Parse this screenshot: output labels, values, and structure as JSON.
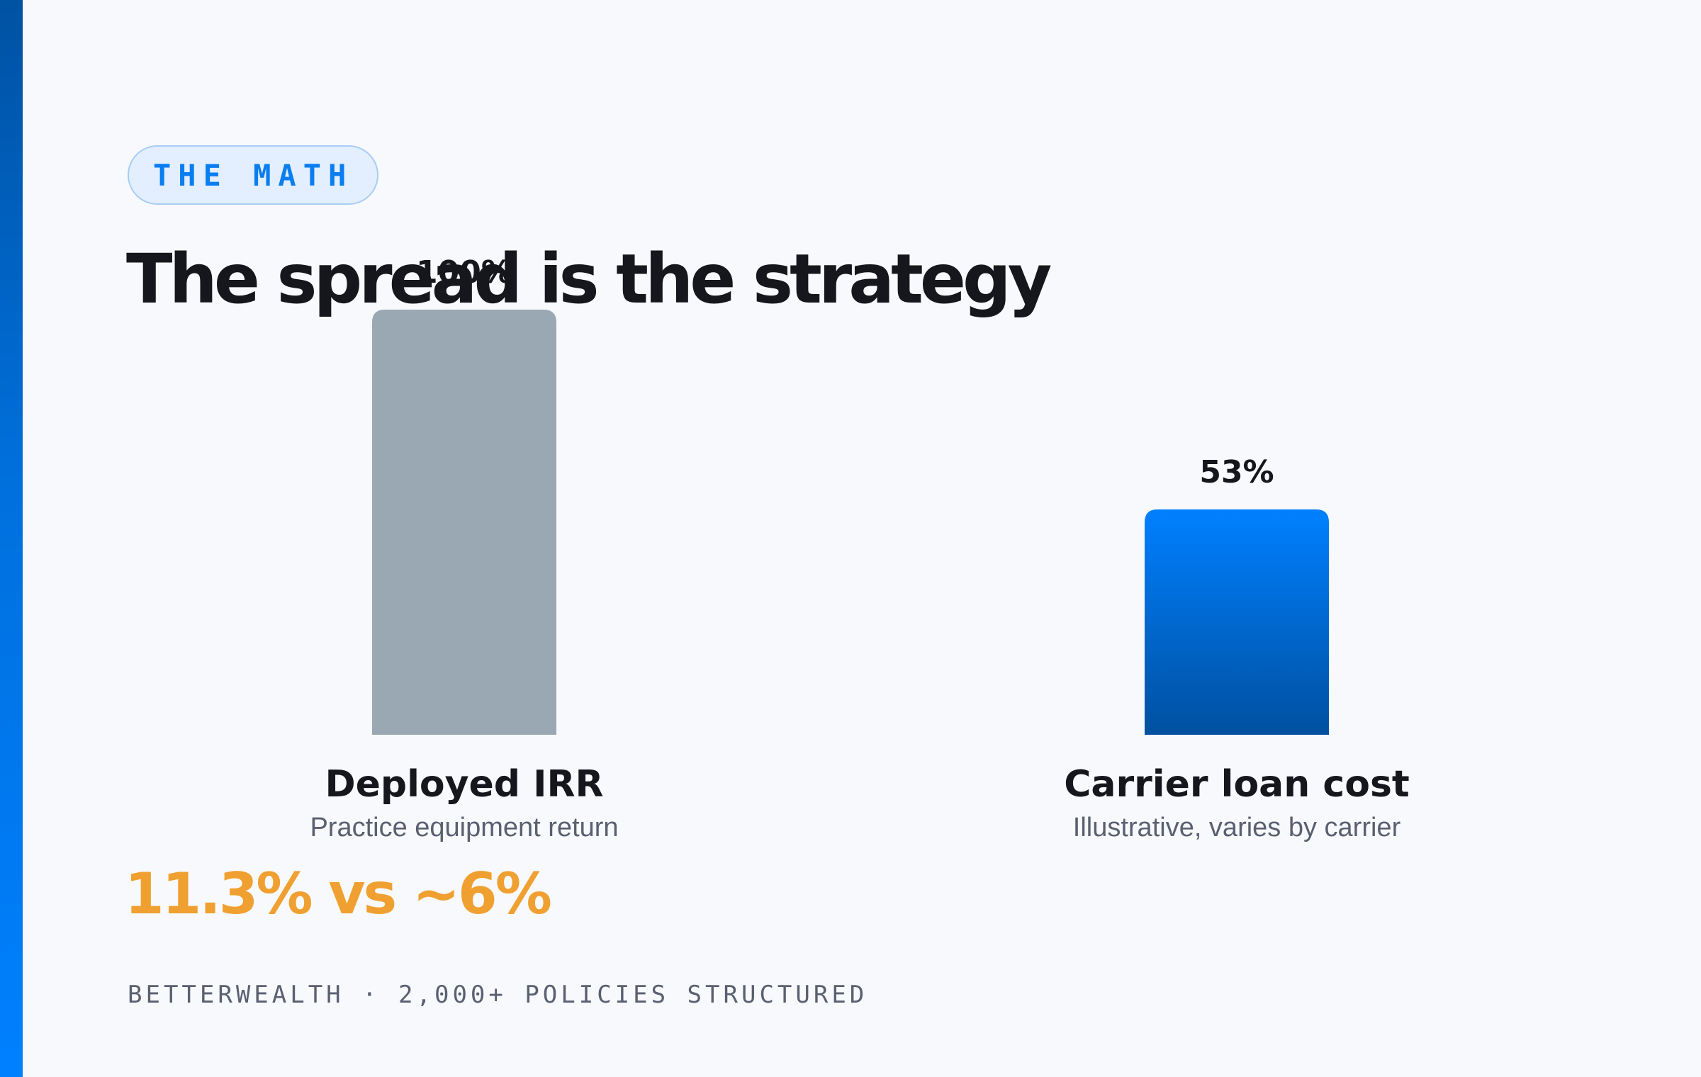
{
  "eyebrow": "THE MATH",
  "headline": "The spread is the strategy",
  "comparison": "11.3% vs ~6%",
  "footer": "BETTERWEALTH · 2,000+ POLICIES STRUCTURED",
  "colors": {
    "accent": "#0080ff",
    "highlight": "#f0a030",
    "bar_neutral": "#9aa8b4",
    "bar_blue_top": "#0080ff",
    "bar_blue_bottom": "#0050a0"
  },
  "chart_data": {
    "type": "bar",
    "categories": [
      "Deployed IRR",
      "Carrier loan cost"
    ],
    "subtitles": [
      "Practice equipment return",
      "Illustrative, varies by carrier"
    ],
    "values": [
      100,
      53
    ],
    "value_labels": [
      "100%",
      "53%"
    ],
    "ylim": [
      0,
      100
    ],
    "grid": false,
    "legend": "none"
  }
}
